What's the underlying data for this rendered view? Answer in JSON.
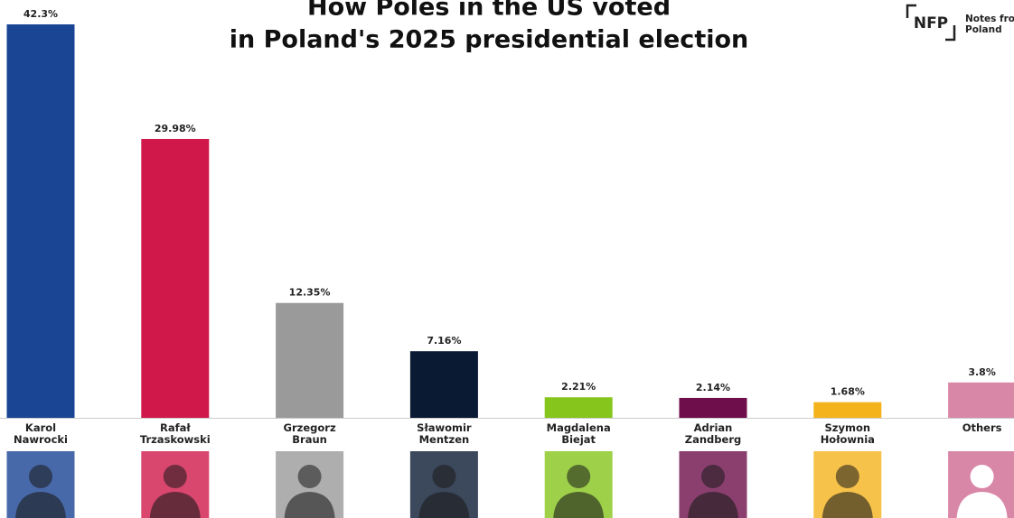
{
  "chart_data": {
    "type": "bar",
    "title": [
      "How Poles in the US voted",
      "in Poland's 2025 presidential election"
    ],
    "categories": [
      "Karol\nNawrocki",
      "Rafał\nTrzaskowski",
      "Grzegorz\nBraun",
      "Sławomir\nMentzen",
      "Magdalena\nBiejat",
      "Adrian\nZandberg",
      "Szymon\nHołownia",
      "Others"
    ],
    "values": [
      42.3,
      29.98,
      12.35,
      7.16,
      2.21,
      2.14,
      1.68,
      3.8
    ],
    "value_labels": [
      "42.3%",
      "29.98%",
      "12.35%",
      "7.16%",
      "2.21%",
      "2.14%",
      "1.68%",
      "3.8%"
    ],
    "colors": [
      "#1a4494",
      "#d0184a",
      "#9a9a9a",
      "#0b1a33",
      "#86c51c",
      "#6e0f4b",
      "#f5b31b",
      "#d987a7"
    ]
  },
  "logo": {
    "mark": "NFP",
    "text": [
      "Notes from",
      "Poland"
    ]
  }
}
